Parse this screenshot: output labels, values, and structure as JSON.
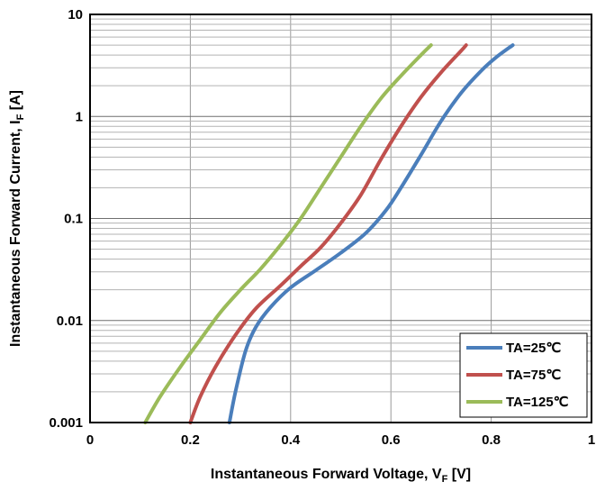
{
  "chart_data": {
    "type": "line",
    "title": "",
    "xlabel": "Instantaneous Forward Voltage, V",
    "xlabel_sub": "F",
    "xlabel_unit": " [V]",
    "ylabel": "Instantaneous Forward Current, I",
    "ylabel_sub": "F",
    "ylabel_unit": " [A]",
    "xlim": [
      0,
      1
    ],
    "ylim": [
      0.001,
      10
    ],
    "yscale": "log",
    "grid": true,
    "x_ticks": [
      {
        "value": 0,
        "label": "0"
      },
      {
        "value": 0.2,
        "label": "0.2"
      },
      {
        "value": 0.4,
        "label": "0.4"
      },
      {
        "value": 0.6,
        "label": "0.6"
      },
      {
        "value": 0.8,
        "label": "0.8"
      },
      {
        "value": 1,
        "label": "1"
      }
    ],
    "y_ticks": [
      {
        "value": 0.001,
        "label": "0.001"
      },
      {
        "value": 0.01,
        "label": "0.01"
      },
      {
        "value": 0.1,
        "label": "0.1"
      },
      {
        "value": 1,
        "label": "1"
      },
      {
        "value": 10,
        "label": "10"
      }
    ],
    "legend_position": "bottom-right",
    "series": [
      {
        "name": "TA=25℃",
        "color": "#4a7ebb",
        "points": [
          [
            0.278,
            0.001
          ],
          [
            0.29,
            0.002
          ],
          [
            0.31,
            0.005
          ],
          [
            0.33,
            0.0085
          ],
          [
            0.36,
            0.0135
          ],
          [
            0.4,
            0.021
          ],
          [
            0.45,
            0.031
          ],
          [
            0.5,
            0.046
          ],
          [
            0.55,
            0.072
          ],
          [
            0.59,
            0.12
          ],
          [
            0.62,
            0.2
          ],
          [
            0.66,
            0.42
          ],
          [
            0.7,
            0.9
          ],
          [
            0.74,
            1.7
          ],
          [
            0.78,
            2.8
          ],
          [
            0.81,
            3.8
          ],
          [
            0.843,
            5
          ]
        ]
      },
      {
        "name": "TA=75℃",
        "color": "#c0504d",
        "points": [
          [
            0.2,
            0.001
          ],
          [
            0.22,
            0.0018
          ],
          [
            0.25,
            0.0035
          ],
          [
            0.29,
            0.0072
          ],
          [
            0.33,
            0.013
          ],
          [
            0.38,
            0.022
          ],
          [
            0.42,
            0.034
          ],
          [
            0.46,
            0.052
          ],
          [
            0.5,
            0.09
          ],
          [
            0.54,
            0.17
          ],
          [
            0.58,
            0.38
          ],
          [
            0.62,
            0.8
          ],
          [
            0.66,
            1.55
          ],
          [
            0.7,
            2.7
          ],
          [
            0.74,
            4.4
          ],
          [
            0.75,
            5
          ]
        ]
      },
      {
        "name": "TA=125℃",
        "color": "#9bbb59",
        "points": [
          [
            0.11,
            0.001
          ],
          [
            0.14,
            0.0018
          ],
          [
            0.18,
            0.0035
          ],
          [
            0.22,
            0.0065
          ],
          [
            0.26,
            0.012
          ],
          [
            0.3,
            0.02
          ],
          [
            0.34,
            0.032
          ],
          [
            0.38,
            0.055
          ],
          [
            0.42,
            0.1
          ],
          [
            0.46,
            0.2
          ],
          [
            0.5,
            0.4
          ],
          [
            0.54,
            0.8
          ],
          [
            0.58,
            1.5
          ],
          [
            0.62,
            2.5
          ],
          [
            0.66,
            4
          ],
          [
            0.68,
            5
          ]
        ]
      }
    ]
  }
}
